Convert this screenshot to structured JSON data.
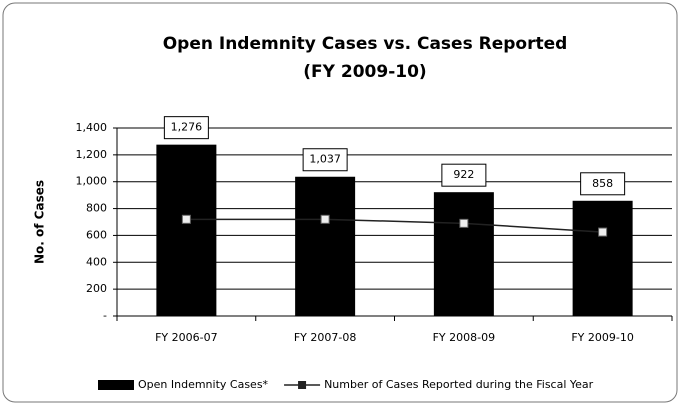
{
  "chart_data": {
    "type": "bar",
    "title": "Open Indemnity Cases vs. Cases Reported",
    "subtitle": "(FY 2009-10)",
    "y_label": "No. of Cases",
    "categories": [
      "FY 2006-07",
      "FY 2007-08",
      "FY 2008-09",
      "FY 2009-10"
    ],
    "series": [
      {
        "name": "Open Indemnity Cases*",
        "type": "bar",
        "color": "#000000",
        "values": [
          1276,
          1037,
          922,
          858
        ],
        "value_labels": [
          "1,276",
          "1,037",
          "922",
          "858"
        ]
      },
      {
        "name": "Number of Cases Reported during the Fiscal Year",
        "type": "line",
        "color": "#222222",
        "values": [
          720,
          720,
          690,
          625
        ]
      }
    ],
    "ylim": [
      0,
      1400
    ],
    "yticks": [
      {
        "value": 0,
        "label": "-"
      },
      200,
      400,
      600,
      800,
      {
        "value": 1000,
        "label": "1,000"
      },
      {
        "value": 1200,
        "label": "1,200"
      },
      {
        "value": 1400,
        "label": "1,400"
      }
    ],
    "grid": true
  }
}
